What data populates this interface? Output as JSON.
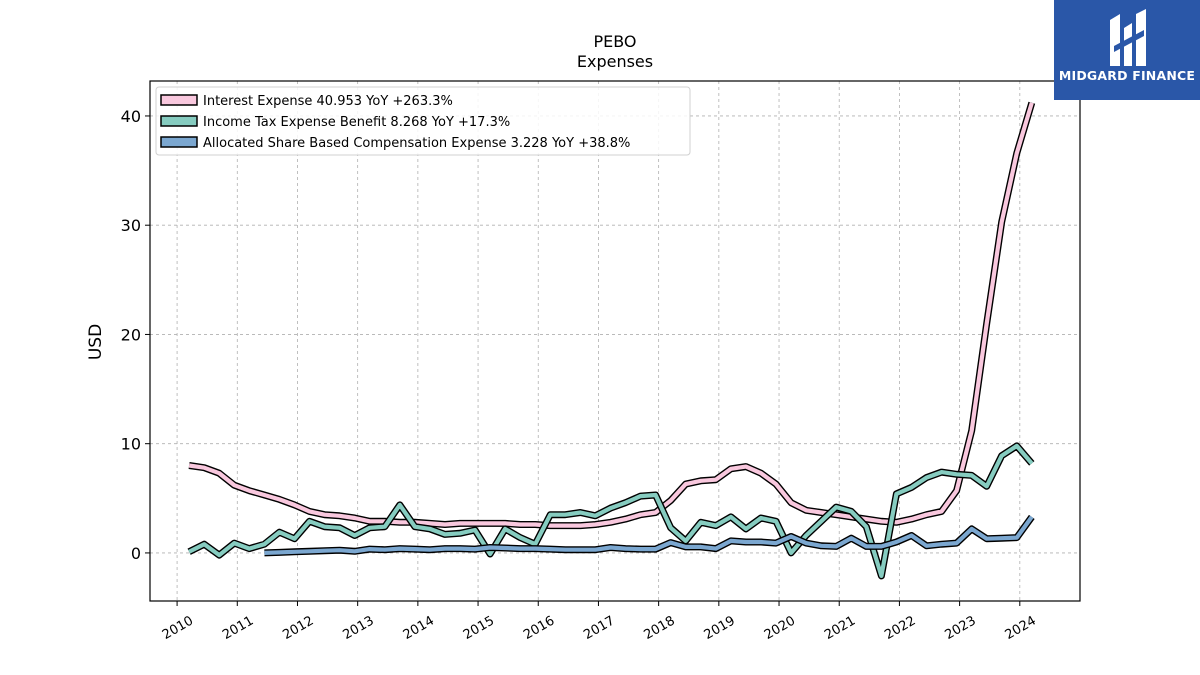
{
  "chart_data": {
    "type": "line",
    "title": "PEBO",
    "subtitle": "Expenses",
    "xlabel": "",
    "ylabel": "USD",
    "xlim": [
      2009.55,
      2025.0
    ],
    "ylim": [
      -4.4,
      43.2
    ],
    "yticks": [
      0,
      10,
      20,
      30,
      40
    ],
    "xticks": [
      2010,
      2011,
      2012,
      2013,
      2014,
      2015,
      2016,
      2017,
      2018,
      2019,
      2020,
      2021,
      2022,
      2023,
      2024
    ],
    "grid": true,
    "legend_position": "top-left",
    "series": [
      {
        "name": "Interest Expense  40.953 YoY +263.3%",
        "color": "#f9c8de",
        "x": [
          2010.2,
          2010.45,
          2010.7,
          2010.95,
          2011.2,
          2011.45,
          2011.7,
          2011.95,
          2012.2,
          2012.45,
          2012.7,
          2012.95,
          2013.2,
          2013.45,
          2013.7,
          2013.95,
          2014.2,
          2014.45,
          2014.7,
          2014.95,
          2015.2,
          2015.45,
          2015.7,
          2015.95,
          2016.2,
          2016.45,
          2016.7,
          2016.95,
          2017.2,
          2017.45,
          2017.7,
          2017.95,
          2018.2,
          2018.45,
          2018.7,
          2018.95,
          2019.2,
          2019.45,
          2019.7,
          2019.95,
          2020.2,
          2020.45,
          2020.7,
          2020.95,
          2021.2,
          2021.45,
          2021.7,
          2021.95,
          2022.2,
          2022.45,
          2022.7,
          2022.95,
          2023.2,
          2023.45,
          2023.7,
          2023.95,
          2024.2
        ],
        "values": [
          8.0,
          7.8,
          7.3,
          6.2,
          5.7,
          5.3,
          4.9,
          4.4,
          3.8,
          3.5,
          3.4,
          3.2,
          2.9,
          2.9,
          2.8,
          2.8,
          2.7,
          2.6,
          2.7,
          2.7,
          2.7,
          2.7,
          2.6,
          2.6,
          2.5,
          2.5,
          2.5,
          2.6,
          2.8,
          3.1,
          3.5,
          3.7,
          4.8,
          6.3,
          6.6,
          6.7,
          7.7,
          7.9,
          7.3,
          6.3,
          4.6,
          3.9,
          3.7,
          3.5,
          3.3,
          3.1,
          2.9,
          2.8,
          3.1,
          3.5,
          3.8,
          5.7,
          11.2,
          21.0,
          30.3,
          36.6,
          41.2
        ]
      },
      {
        "name": "Income Tax Expense Benefit  8.268 YoY +17.3%",
        "color": "#86ccc0",
        "x": [
          2010.2,
          2010.45,
          2010.7,
          2010.95,
          2011.2,
          2011.45,
          2011.7,
          2011.95,
          2012.2,
          2012.45,
          2012.7,
          2012.95,
          2013.2,
          2013.45,
          2013.7,
          2013.95,
          2014.2,
          2014.45,
          2014.7,
          2014.95,
          2015.2,
          2015.45,
          2015.7,
          2015.95,
          2016.2,
          2016.45,
          2016.7,
          2016.95,
          2017.2,
          2017.45,
          2017.7,
          2017.95,
          2018.2,
          2018.45,
          2018.7,
          2018.95,
          2019.2,
          2019.45,
          2019.7,
          2019.95,
          2020.2,
          2020.45,
          2020.7,
          2020.95,
          2021.2,
          2021.45,
          2021.7,
          2021.95,
          2022.2,
          2022.45,
          2022.7,
          2022.95,
          2023.2,
          2023.45,
          2023.7,
          2023.95,
          2024.2
        ],
        "values": [
          0.1,
          0.8,
          -0.2,
          0.9,
          0.4,
          0.8,
          1.9,
          1.3,
          2.9,
          2.4,
          2.3,
          1.6,
          2.3,
          2.4,
          4.4,
          2.4,
          2.2,
          1.7,
          1.8,
          2.1,
          -0.1,
          2.2,
          1.4,
          0.8,
          3.5,
          3.5,
          3.7,
          3.4,
          4.1,
          4.6,
          5.2,
          5.3,
          2.3,
          1.1,
          2.8,
          2.5,
          3.3,
          2.2,
          3.2,
          2.9,
          0.0,
          1.6,
          2.9,
          4.2,
          3.8,
          2.4,
          -2.1,
          5.4,
          6.0,
          6.9,
          7.4,
          7.2,
          7.1,
          6.1,
          8.9,
          9.8,
          8.2
        ]
      },
      {
        "name": "Allocated Share Based Compensation Expense  3.228 YoY +38.8%",
        "color": "#7ba7d0",
        "x": [
          2011.45,
          2011.7,
          2011.95,
          2012.2,
          2012.45,
          2012.7,
          2012.95,
          2013.2,
          2013.45,
          2013.7,
          2013.95,
          2014.2,
          2014.45,
          2014.7,
          2014.95,
          2015.2,
          2015.45,
          2015.7,
          2015.95,
          2016.2,
          2016.45,
          2016.7,
          2016.95,
          2017.2,
          2017.45,
          2017.7,
          2017.95,
          2018.2,
          2018.45,
          2018.7,
          2018.95,
          2019.2,
          2019.45,
          2019.7,
          2019.95,
          2020.2,
          2020.45,
          2020.7,
          2020.95,
          2021.2,
          2021.45,
          2021.7,
          2021.95,
          2022.2,
          2022.45,
          2022.7,
          2022.95,
          2023.2,
          2023.45,
          2023.7,
          2023.95,
          2024.2
        ],
        "values": [
          0.0,
          0.05,
          0.1,
          0.15,
          0.2,
          0.25,
          0.15,
          0.35,
          0.3,
          0.4,
          0.35,
          0.3,
          0.4,
          0.4,
          0.35,
          0.5,
          0.45,
          0.4,
          0.4,
          0.35,
          0.3,
          0.3,
          0.3,
          0.5,
          0.4,
          0.35,
          0.35,
          0.95,
          0.55,
          0.55,
          0.4,
          1.1,
          1.0,
          1.0,
          0.9,
          1.5,
          0.9,
          0.65,
          0.6,
          1.35,
          0.6,
          0.6,
          1.0,
          1.6,
          0.65,
          0.8,
          0.9,
          2.2,
          1.3,
          1.35,
          1.4,
          3.3
        ]
      }
    ]
  },
  "logo": {
    "text": "MIDGARD FINANCE"
  }
}
